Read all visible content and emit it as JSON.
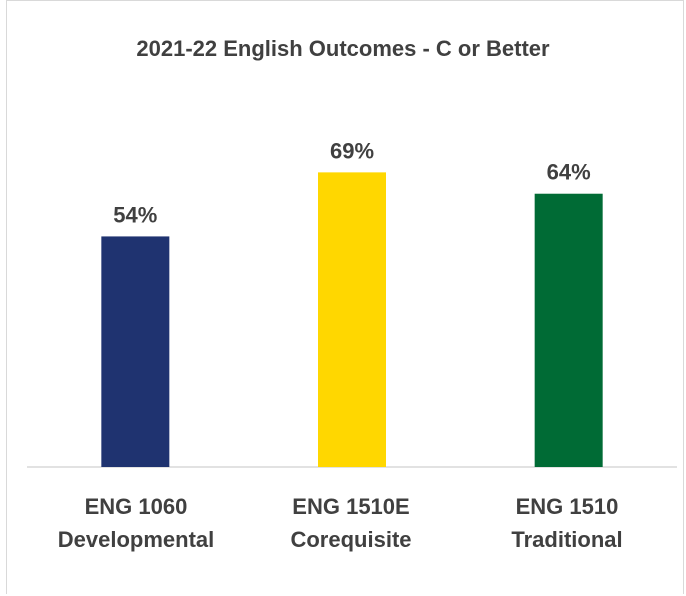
{
  "chart_data": {
    "type": "bar",
    "title": "2021-22 English Outcomes - C or Better",
    "categories": [
      [
        "ENG 1060",
        "Developmental"
      ],
      [
        "ENG 1510E",
        "Corequisite"
      ],
      [
        "ENG 1510",
        "Traditional"
      ]
    ],
    "values": [
      54,
      69,
      64
    ],
    "data_labels": [
      "54%",
      "69%",
      "64%"
    ],
    "colors": [
      "#1f3370",
      "#ffd700",
      "#006b35"
    ],
    "ylim": [
      0,
      100
    ],
    "grid": false,
    "legend": "none"
  }
}
